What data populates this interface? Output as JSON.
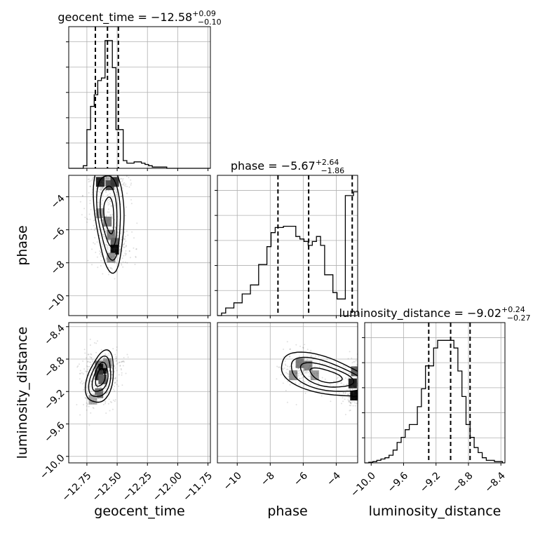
{
  "chart_data": {
    "type": "corner",
    "parameters": [
      "geocent_time",
      "phase",
      "luminosity_distance"
    ],
    "titles": [
      {
        "param": "geocent_time",
        "prefix": "geocent_time = −12.58",
        "plus": "+0.09",
        "minus": "−0.10"
      },
      {
        "param": "phase",
        "prefix": "phase = −5.67",
        "plus": "+2.64",
        "minus": "−1.86"
      },
      {
        "param": "luminosity_distance",
        "prefix": "luminosity_distance = −9.02",
        "plus": "+0.24",
        "minus": "−0.27"
      }
    ],
    "axes": {
      "geocent_time": {
        "range": [
          -12.9,
          -11.73
        ],
        "ticks": [
          -12.75,
          -12.5,
          -12.25,
          -12.0,
          -11.75
        ],
        "tick_labels": [
          "−12.75",
          "−12.50",
          "−12.25",
          "−12.00",
          "−11.75"
        ]
      },
      "phase": {
        "range": [
          -11.2,
          -2.7
        ],
        "ticks": [
          -10,
          -8,
          -6,
          -4
        ],
        "tick_labels": [
          "−10",
          "−8",
          "−6",
          "−4"
        ]
      },
      "luminosity_distance": {
        "range": [
          -10.08,
          -8.35
        ],
        "ticks": [
          -10.0,
          -9.6,
          -9.2,
          -8.8,
          -8.4
        ],
        "tick_labels": [
          "−10.0",
          "−9.6",
          "−9.2",
          "−8.8",
          "−8.4"
        ]
      }
    },
    "histograms": {
      "geocent_time": {
        "edges": [
          -12.9,
          -12.87,
          -12.84,
          -12.81,
          -12.78,
          -12.75,
          -12.72,
          -12.69,
          -12.66,
          -12.63,
          -12.6,
          -12.57,
          -12.54,
          -12.51,
          -12.48,
          -12.45,
          -12.42,
          -12.39,
          -12.36,
          -12.33,
          -12.3,
          -12.27,
          -12.24,
          -12.21,
          -12.18,
          -12.15,
          -12.12,
          -12.09,
          -12.06,
          -12.03,
          -12.0,
          -11.97,
          -11.94,
          -11.91,
          -11.88,
          -11.85,
          -11.82,
          -11.79,
          -11.76,
          -11.73
        ],
        "counts": [
          0,
          0,
          0,
          0,
          0.02,
          0.3,
          0.48,
          0.57,
          0.68,
          0.7,
          0.99,
          0.99,
          0.78,
          0.3,
          0.3,
          0.06,
          0.04,
          0.04,
          0.05,
          0.05,
          0.04,
          0.03,
          0.02,
          0.01,
          0.01,
          0.01,
          0.01,
          0,
          0,
          0,
          0,
          0,
          0,
          0,
          0,
          0,
          0,
          0,
          0
        ],
        "quantile_lines": [
          -12.68,
          -12.58,
          -12.49
        ]
      },
      "phase": {
        "edges": [
          -11.2,
          -10.95,
          -10.7,
          -10.45,
          -10.2,
          -9.95,
          -9.7,
          -9.45,
          -9.2,
          -8.95,
          -8.7,
          -8.45,
          -8.2,
          -7.95,
          -7.7,
          -7.45,
          -7.2,
          -6.95,
          -6.7,
          -6.45,
          -6.2,
          -5.95,
          -5.7,
          -5.45,
          -5.2,
          -4.95,
          -4.7,
          -4.45,
          -4.2,
          -3.95,
          -3.7,
          -3.45,
          -3.2,
          -2.95,
          -2.7
        ],
        "counts": [
          0,
          0.02,
          0.06,
          0.06,
          0.1,
          0.1,
          0.17,
          0.17,
          0.24,
          0.24,
          0.4,
          0.4,
          0.54,
          0.65,
          0.69,
          0.69,
          0.7,
          0.7,
          0.7,
          0.62,
          0.6,
          0.58,
          0.55,
          0.58,
          0.62,
          0.55,
          0.32,
          0.32,
          0.18,
          0.13,
          0.13,
          0.94,
          0.94,
          0.97
        ],
        "quantile_lines": [
          -7.53,
          -5.67,
          -3.03
        ]
      },
      "luminosity_distance": {
        "edges": [
          -10.08,
          -10.03,
          -9.98,
          -9.93,
          -9.88,
          -9.83,
          -9.78,
          -9.73,
          -9.68,
          -9.63,
          -9.58,
          -9.53,
          -9.48,
          -9.43,
          -9.38,
          -9.33,
          -9.28,
          -9.23,
          -9.18,
          -9.13,
          -9.08,
          -9.03,
          -8.98,
          -8.93,
          -8.88,
          -8.83,
          -8.78,
          -8.73,
          -8.68,
          -8.63,
          -8.58,
          -8.53,
          -8.48,
          -8.43,
          -8.38,
          -8.35
        ],
        "counts": [
          0,
          0.005,
          0.01,
          0.02,
          0.03,
          0.04,
          0.06,
          0.1,
          0.16,
          0.2,
          0.26,
          0.3,
          0.3,
          0.44,
          0.58,
          0.76,
          0.76,
          0.9,
          0.96,
          0.96,
          0.96,
          0.96,
          0.9,
          0.72,
          0.52,
          0.3,
          0.2,
          0.12,
          0.08,
          0.04,
          0.02,
          0.02,
          0.01,
          0.01,
          0
        ],
        "quantile_lines": [
          -9.29,
          -9.02,
          -8.78
        ]
      }
    },
    "scatter_2d": [
      {
        "x_param": "geocent_time",
        "y_param": "phase",
        "density_cells": [
          {
            "x": -12.58,
            "y": -2.9,
            "w": 0.2
          },
          {
            "x": -12.64,
            "y": -3.1,
            "w": 0.9
          },
          {
            "x": -12.56,
            "y": -3.3,
            "w": 0.7
          },
          {
            "x": -12.52,
            "y": -3.1,
            "w": 0.8
          },
          {
            "x": -12.64,
            "y": -5.0,
            "w": 0.35
          },
          {
            "x": -12.58,
            "y": -5.5,
            "w": 0.5
          },
          {
            "x": -12.55,
            "y": -6.3,
            "w": 0.5
          },
          {
            "x": -12.52,
            "y": -6.8,
            "w": 0.6
          },
          {
            "x": -12.52,
            "y": -7.2,
            "w": 1.0
          },
          {
            "x": -12.55,
            "y": -7.7,
            "w": 0.4
          }
        ]
      },
      {
        "x_param": "geocent_time",
        "y_param": "luminosity_distance",
        "density_cells": [
          {
            "x": -12.65,
            "y": -8.88,
            "w": 0.5
          },
          {
            "x": -12.62,
            "y": -8.92,
            "w": 1.0
          },
          {
            "x": -12.65,
            "y": -9.0,
            "w": 0.8
          },
          {
            "x": -12.62,
            "y": -9.05,
            "w": 0.6
          },
          {
            "x": -12.65,
            "y": -9.22,
            "w": 0.55
          },
          {
            "x": -12.7,
            "y": -9.3,
            "w": 0.3
          },
          {
            "x": -12.58,
            "y": -8.85,
            "w": 0.4
          }
        ]
      },
      {
        "x_param": "phase",
        "y_param": "luminosity_distance",
        "density_cells": [
          {
            "x": -6.2,
            "y": -8.85,
            "w": 0.5
          },
          {
            "x": -5.7,
            "y": -8.88,
            "w": 0.45
          },
          {
            "x": -6.6,
            "y": -9.0,
            "w": 0.4
          },
          {
            "x": -5.3,
            "y": -9.0,
            "w": 0.35
          },
          {
            "x": -3.0,
            "y": -9.1,
            "w": 0.9
          },
          {
            "x": -2.9,
            "y": -9.25,
            "w": 1.0
          },
          {
            "x": -2.85,
            "y": -8.95,
            "w": 0.6
          }
        ]
      }
    ],
    "contour_levels": [
      "0.5",
      "1.0",
      "1.5",
      "2.0 sigma"
    ],
    "grid": true,
    "colors": {
      "hist": "#000000",
      "contour": "#000000",
      "points": "#555555",
      "grid": "#b0b0b0"
    }
  }
}
